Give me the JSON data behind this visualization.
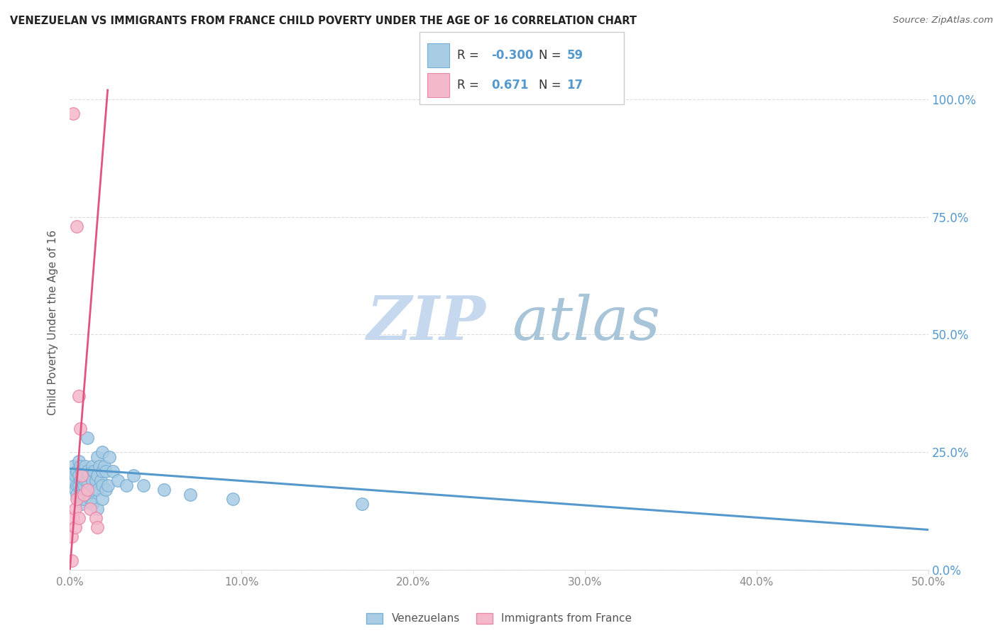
{
  "title": "VENEZUELAN VS IMMIGRANTS FROM FRANCE CHILD POVERTY UNDER THE AGE OF 16 CORRELATION CHART",
  "source": "Source: ZipAtlas.com",
  "ylabel_label": "Child Poverty Under the Age of 16",
  "legend_label1": "Venezuelans",
  "legend_label2": "Immigrants from France",
  "R1": "-0.300",
  "N1": "59",
  "R2": "0.671",
  "N2": "17",
  "blue_color": "#a8cce4",
  "pink_color": "#f4b8cb",
  "blue_edge_color": "#7aafd4",
  "pink_edge_color": "#e888a8",
  "blue_line_color": "#5599cc",
  "pink_line_color": "#e05580",
  "title_color": "#222222",
  "source_color": "#666666",
  "watermark_zip_color": "#c5d8ee",
  "watermark_atlas_color": "#a8c4d8",
  "axis_label_color": "#555555",
  "tick_label_color": "#888888",
  "right_tick_color": "#5599cc",
  "grid_color": "#dddddd",
  "xlim": [
    0.0,
    0.5
  ],
  "ylim": [
    0.0,
    1.05
  ],
  "x_ticks": [
    0.0,
    0.1,
    0.2,
    0.3,
    0.4,
    0.5
  ],
  "x_tick_labels": [
    "0.0%",
    "10.0%",
    "20.0%",
    "30.0%",
    "40.0%",
    "50.0%"
  ],
  "y_ticks": [
    0.0,
    0.25,
    0.5,
    0.75,
    1.0
  ],
  "y_tick_labels": [
    "0.0%",
    "25.0%",
    "50.0%",
    "75.0%",
    "100.0%"
  ],
  "blue_scatter": [
    [
      0.002,
      0.22
    ],
    [
      0.002,
      0.19
    ],
    [
      0.003,
      0.2
    ],
    [
      0.003,
      0.17
    ],
    [
      0.004,
      0.21
    ],
    [
      0.004,
      0.18
    ],
    [
      0.004,
      0.16
    ],
    [
      0.005,
      0.23
    ],
    [
      0.005,
      0.2
    ],
    [
      0.005,
      0.18
    ],
    [
      0.005,
      0.15
    ],
    [
      0.006,
      0.22
    ],
    [
      0.006,
      0.19
    ],
    [
      0.006,
      0.17
    ],
    [
      0.007,
      0.21
    ],
    [
      0.007,
      0.19
    ],
    [
      0.007,
      0.16
    ],
    [
      0.007,
      0.14
    ],
    [
      0.008,
      0.2
    ],
    [
      0.008,
      0.18
    ],
    [
      0.008,
      0.15
    ],
    [
      0.009,
      0.22
    ],
    [
      0.009,
      0.19
    ],
    [
      0.01,
      0.28
    ],
    [
      0.01,
      0.21
    ],
    [
      0.01,
      0.19
    ],
    [
      0.01,
      0.16
    ],
    [
      0.011,
      0.2
    ],
    [
      0.012,
      0.15
    ],
    [
      0.013,
      0.22
    ],
    [
      0.013,
      0.19
    ],
    [
      0.013,
      0.17
    ],
    [
      0.013,
      0.14
    ],
    [
      0.014,
      0.21
    ],
    [
      0.015,
      0.19
    ],
    [
      0.016,
      0.24
    ],
    [
      0.016,
      0.2
    ],
    [
      0.016,
      0.17
    ],
    [
      0.016,
      0.13
    ],
    [
      0.017,
      0.22
    ],
    [
      0.018,
      0.19
    ],
    [
      0.019,
      0.25
    ],
    [
      0.019,
      0.21
    ],
    [
      0.019,
      0.18
    ],
    [
      0.019,
      0.15
    ],
    [
      0.02,
      0.22
    ],
    [
      0.021,
      0.17
    ],
    [
      0.021,
      0.21
    ],
    [
      0.022,
      0.18
    ],
    [
      0.023,
      0.24
    ],
    [
      0.025,
      0.21
    ],
    [
      0.028,
      0.19
    ],
    [
      0.033,
      0.18
    ],
    [
      0.037,
      0.2
    ],
    [
      0.043,
      0.18
    ],
    [
      0.055,
      0.17
    ],
    [
      0.07,
      0.16
    ],
    [
      0.095,
      0.15
    ],
    [
      0.17,
      0.14
    ]
  ],
  "pink_scatter": [
    [
      0.001,
      0.02
    ],
    [
      0.001,
      0.07
    ],
    [
      0.002,
      0.11
    ],
    [
      0.003,
      0.13
    ],
    [
      0.003,
      0.09
    ],
    [
      0.004,
      0.15
    ],
    [
      0.005,
      0.11
    ],
    [
      0.005,
      0.37
    ],
    [
      0.006,
      0.3
    ],
    [
      0.007,
      0.2
    ],
    [
      0.008,
      0.16
    ],
    [
      0.01,
      0.17
    ],
    [
      0.012,
      0.13
    ],
    [
      0.015,
      0.11
    ],
    [
      0.016,
      0.09
    ],
    [
      0.002,
      0.97
    ],
    [
      0.004,
      0.73
    ]
  ],
  "blue_trendline_x": [
    0.0,
    0.5
  ],
  "blue_trendline_y": [
    0.215,
    0.085
  ],
  "pink_trendline_x": [
    0.0,
    0.022
  ],
  "pink_trendline_y": [
    0.0,
    1.02
  ]
}
